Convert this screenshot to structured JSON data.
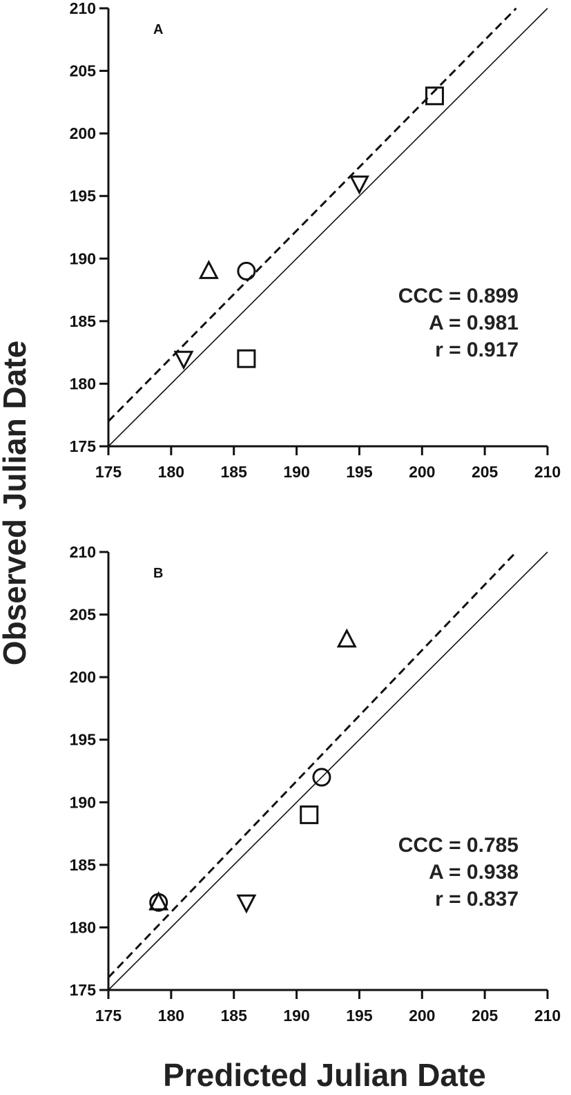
{
  "figure": {
    "xlabel": "Predicted Julian Date",
    "ylabel": "Observed Julian Date"
  },
  "chart_data": [
    {
      "type": "scatter",
      "panel": "A",
      "xlabel": "Predicted Julian Date",
      "ylabel": "Observed Julian Date",
      "xlim": [
        175,
        210
      ],
      "ylim": [
        175,
        210
      ],
      "xticks": [
        175,
        180,
        185,
        190,
        195,
        200,
        205,
        210
      ],
      "yticks": [
        175,
        180,
        185,
        190,
        195,
        200,
        205,
        210
      ],
      "points": [
        {
          "marker": "square",
          "x": 201,
          "y": 203
        },
        {
          "marker": "triangle-down",
          "x": 195,
          "y": 196
        },
        {
          "marker": "triangle-up",
          "x": 183,
          "y": 189
        },
        {
          "marker": "circle",
          "x": 186,
          "y": 189
        },
        {
          "marker": "triangle-down",
          "x": 181,
          "y": 182
        },
        {
          "marker": "square",
          "x": 186,
          "y": 182
        }
      ],
      "lines": [
        {
          "style": "solid",
          "from": [
            175,
            175
          ],
          "to": [
            210,
            210
          ]
        },
        {
          "style": "dashed",
          "from": [
            175,
            177
          ],
          "to": [
            207.5,
            210
          ]
        }
      ],
      "stats": [
        "CCC = 0.899",
        "A = 0.981",
        "r = 0.917"
      ]
    },
    {
      "type": "scatter",
      "panel": "B",
      "xlabel": "Predicted Julian Date",
      "ylabel": "Observed Julian Date",
      "xlim": [
        175,
        210
      ],
      "ylim": [
        175,
        210
      ],
      "xticks": [
        175,
        180,
        185,
        190,
        195,
        200,
        205,
        210
      ],
      "yticks": [
        175,
        180,
        185,
        190,
        195,
        200,
        205,
        210
      ],
      "points": [
        {
          "marker": "triangle-up",
          "x": 194,
          "y": 203
        },
        {
          "marker": "circle",
          "x": 192,
          "y": 192
        },
        {
          "marker": "square",
          "x": 191,
          "y": 189
        },
        {
          "marker": "circle",
          "x": 179,
          "y": 182
        },
        {
          "marker": "triangle-up",
          "x": 179,
          "y": 182
        },
        {
          "marker": "triangle-down",
          "x": 186,
          "y": 182
        }
      ],
      "lines": [
        {
          "style": "solid",
          "from": [
            175,
            175
          ],
          "to": [
            210,
            210
          ]
        },
        {
          "style": "dashed",
          "from": [
            175,
            176
          ],
          "to": [
            207.5,
            210
          ]
        }
      ],
      "stats": [
        "CCC = 0.785",
        "A = 0.938",
        "r = 0.837"
      ]
    }
  ]
}
